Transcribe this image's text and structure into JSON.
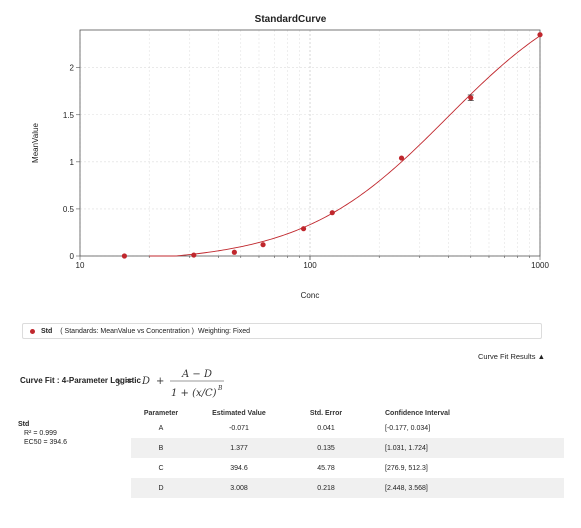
{
  "chart_data": {
    "type": "scatter",
    "title": "StandardCurve",
    "xlabel": "Conc",
    "ylabel": "MeanValue",
    "xscale": "log",
    "xlim": [
      10,
      1000
    ],
    "ylim": [
      0,
      2.4
    ],
    "x_ticks": [
      "10",
      "100",
      "1000"
    ],
    "y_ticks": [
      "0",
      "0.5",
      "1",
      "1.5",
      "2"
    ],
    "grid": true,
    "series": [
      {
        "name": "Std",
        "color": "#c0272d",
        "points": [
          {
            "x": 15.6,
            "y": 0.0
          },
          {
            "x": 31.25,
            "y": 0.01
          },
          {
            "x": 46.9,
            "y": 0.04
          },
          {
            "x": 62.5,
            "y": 0.12
          },
          {
            "x": 93.75,
            "y": 0.29
          },
          {
            "x": 125,
            "y": 0.46
          },
          {
            "x": 250,
            "y": 1.04
          },
          {
            "x": 500,
            "y": 1.68
          },
          {
            "x": 1000,
            "y": 2.35
          }
        ]
      }
    ],
    "fit": {
      "A": -0.071,
      "B": 1.377,
      "C": 394.6,
      "D": 3.008
    }
  },
  "legend": {
    "label": "Std",
    "description": "( Standards: MeanValue vs Concentration )",
    "weighting": "Weighting: Fixed"
  },
  "results_toggle": "Curve Fit Results ▲",
  "fit_title": "Curve Fit : 4-Parameter Logistic",
  "table": {
    "headers": [
      "Parameter",
      "Estimated Value",
      "Std. Error",
      "Confidence Interval"
    ],
    "std": {
      "name": "Std",
      "r2": "R² = 0.999",
      "ec50": "EC50 = 394.6"
    },
    "rows": [
      {
        "param": "A",
        "value": "-0.071",
        "se": "0.041",
        "ci": "[-0.177, 0.034]"
      },
      {
        "param": "B",
        "value": "1.377",
        "se": "0.135",
        "ci": "[1.031, 1.724]"
      },
      {
        "param": "C",
        "value": "394.6",
        "se": "45.78",
        "ci": "[276.9, 512.3]"
      },
      {
        "param": "D",
        "value": "3.008",
        "se": "0.218",
        "ci": "[2.448, 3.568]"
      }
    ]
  }
}
